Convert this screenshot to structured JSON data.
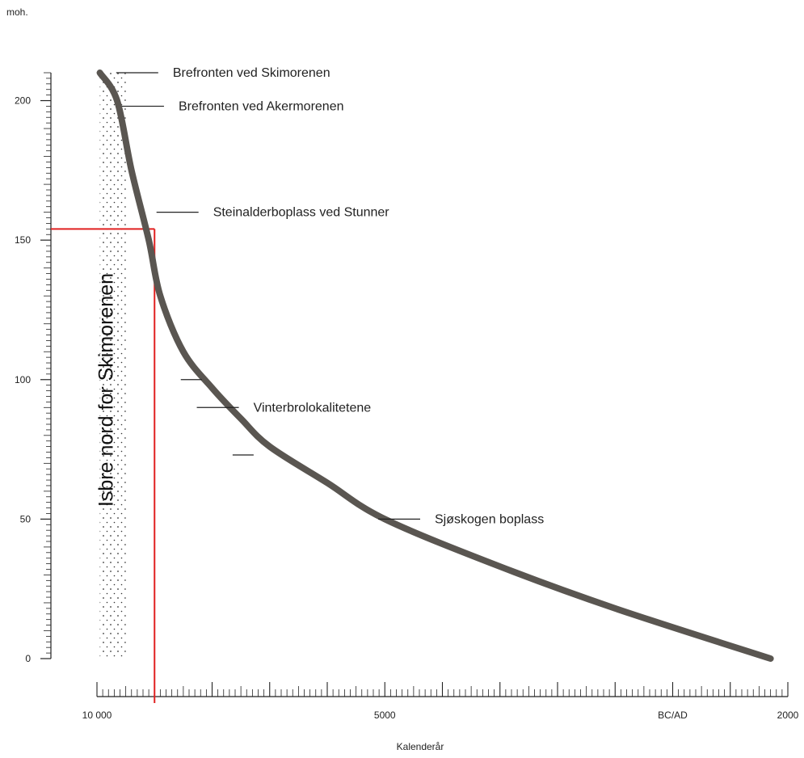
{
  "chart_data": {
    "type": "line",
    "title": "",
    "ylabel": "moh.",
    "xlabel": "Kalenderår",
    "ylim": [
      0,
      210
    ],
    "xlim": [
      10000,
      -2000
    ],
    "x_ticks": [
      {
        "value": 10000,
        "label": "10 000"
      },
      {
        "value": 5000,
        "label": "5000"
      },
      {
        "value": 0,
        "label": "BC/AD"
      },
      {
        "value": -2000,
        "label": "2000"
      }
    ],
    "y_ticks": [
      {
        "value": 0,
        "label": "0"
      },
      {
        "value": 50,
        "label": "50"
      },
      {
        "value": 100,
        "label": "100"
      },
      {
        "value": 150,
        "label": "150"
      },
      {
        "value": 200,
        "label": "200"
      }
    ],
    "series": [
      {
        "name": "",
        "color": "#5a5651",
        "x": [
          9950,
          9650,
          9400,
          9100,
          8900,
          8500,
          8000,
          7500,
          7000,
          6000,
          5000,
          3000,
          1000,
          -1700
        ],
        "y": [
          210,
          200,
          175,
          150,
          130,
          110,
          97,
          86,
          76,
          63,
          50,
          33,
          18,
          0
        ]
      }
    ],
    "reference_lines": {
      "color": "#e02020",
      "x": 9000,
      "y": 154
    },
    "ice_zone": {
      "label": "Isbre nord for Skimorenen",
      "x_from": 9950,
      "x_to": 9500
    },
    "annotations": [
      {
        "label": "Brefronten ved Skimorenen",
        "x": 9750,
        "y": 210
      },
      {
        "label": "Brefronten ved Akermorenen",
        "x": 9650,
        "y": 198
      },
      {
        "label": "Steinalderboplass ved Stunner",
        "x": 9050,
        "y": 160
      },
      {
        "label": "Vinterbrolokalitetene",
        "x": 8350,
        "y": 90
      },
      {
        "label": "Sjøskogen boplass",
        "x": 5200,
        "y": 50
      }
    ]
  }
}
